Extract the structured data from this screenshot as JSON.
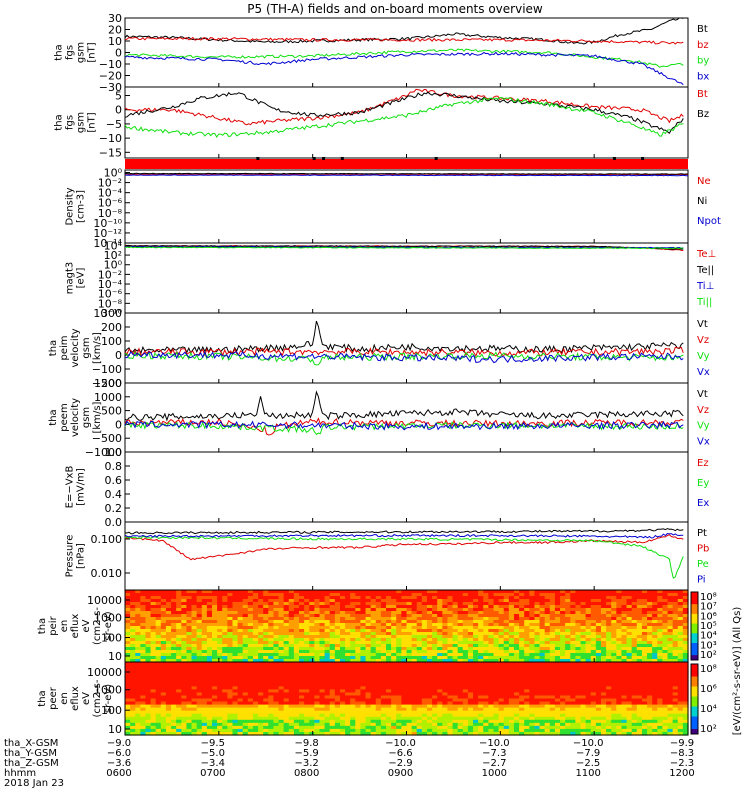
{
  "title": "P5 (TH-A) fields and on-board moments overview",
  "colors": {
    "black": "#000000",
    "red": "#e00000",
    "green": "#10e010",
    "blue": "#0000d0"
  },
  "chart_data": [
    {
      "id": "fgs-gsm",
      "type": "line",
      "ylabel": [
        "tha",
        "fgs",
        "gsm",
        "[nT]"
      ],
      "ylim": [
        -30,
        30
      ],
      "yticks": [
        "30",
        "20",
        "10",
        "0",
        "−10",
        "−20",
        "−30"
      ],
      "ytick_values": [
        30,
        20,
        10,
        0,
        -10,
        -20,
        -30
      ],
      "legend": [
        {
          "name": "Bt",
          "color": "black"
        },
        {
          "name": "bz",
          "color": "red"
        },
        {
          "name": "by",
          "color": "green"
        },
        {
          "name": "bx",
          "color": "blue"
        }
      ],
      "series": [
        {
          "name": "Bt",
          "color": "black",
          "x": [
            6.0,
            6.5,
            7.0,
            7.5,
            8.0,
            8.5,
            9.0,
            9.3,
            9.5,
            10.0,
            10.5,
            10.8,
            11.0,
            11.3,
            11.6,
            11.8,
            11.95
          ],
          "y": [
            14,
            13,
            11,
            9,
            10,
            11,
            12,
            14,
            16,
            13,
            11,
            8,
            9,
            16,
            20,
            27,
            30
          ]
        },
        {
          "name": "bz",
          "color": "red",
          "x": [
            6.0,
            7.0,
            8.0,
            9.0,
            10.0,
            11.0,
            11.95
          ],
          "y": [
            12,
            12,
            11,
            11,
            11,
            10,
            8
          ]
        },
        {
          "name": "by",
          "color": "green",
          "x": [
            6.0,
            7.0,
            8.0,
            8.5,
            9.0,
            9.5,
            10.0,
            10.5,
            11.0,
            11.4,
            11.7,
            11.95
          ],
          "y": [
            -2,
            -4,
            -3,
            -1,
            1,
            2,
            1,
            0,
            -4,
            -7,
            -12,
            -10
          ]
        },
        {
          "name": "bx",
          "color": "blue",
          "x": [
            6.0,
            7.0,
            7.5,
            8.0,
            9.0,
            10.0,
            11.0,
            11.5,
            11.8,
            11.95
          ],
          "y": [
            -4,
            -6,
            -10,
            -6,
            -2,
            -1,
            -3,
            -10,
            -22,
            -28
          ]
        }
      ]
    },
    {
      "id": "fgs-gsm-zoom",
      "type": "line",
      "ylabel": [
        "tha",
        "fgs",
        "gsm",
        "[nT]"
      ],
      "ylim": [
        -17,
        8
      ],
      "yticks": [
        "5",
        "0",
        "−5",
        "−10",
        "−15"
      ],
      "ytick_values": [
        5,
        0,
        -5,
        -10,
        -15
      ],
      "legend": [
        {
          "name": "Bt",
          "color": "red"
        },
        {
          "name": "Bz",
          "color": "black"
        }
      ],
      "series": [
        {
          "name": "Bt",
          "color": "red",
          "x": [
            6.0,
            6.5,
            7.0,
            7.3,
            7.6,
            8.0,
            8.5,
            9.0,
            9.1,
            9.5,
            10.0,
            10.5,
            11.0,
            11.5,
            11.8,
            11.95
          ],
          "y": [
            0,
            0,
            -3,
            -5,
            -4,
            -3,
            -1,
            5,
            7,
            5,
            4,
            3,
            1,
            0,
            -4,
            -2
          ]
        },
        {
          "name": "Bz",
          "color": "black",
          "x": [
            6.0,
            6.5,
            6.8,
            7.2,
            7.6,
            8.0,
            8.5,
            9.0,
            9.2,
            9.5,
            10.0,
            10.5,
            11.0,
            11.4,
            11.8,
            11.95
          ],
          "y": [
            -2,
            1,
            4,
            6,
            0,
            -2,
            -1,
            4,
            6,
            5,
            3,
            2,
            0,
            -3,
            -8,
            -3
          ]
        },
        {
          "name": "by",
          "color": "green",
          "x": [
            6.0,
            6.5,
            7.0,
            7.5,
            8.0,
            8.5,
            9.0,
            9.5,
            10.0,
            10.5,
            11.0,
            11.4,
            11.7,
            11.95
          ],
          "y": [
            -6,
            -8,
            -9,
            -8,
            -6,
            -4,
            -2,
            2,
            4,
            2,
            -1,
            -5,
            -9,
            -5
          ]
        }
      ]
    },
    {
      "id": "density",
      "type": "line",
      "ylabel": [
        "Density",
        "[cm-3]"
      ],
      "yscale": "log",
      "ylim": [
        -14,
        0.5
      ],
      "yticks": [
        "10⁰",
        "10⁻²",
        "10⁻⁴",
        "10⁻⁶",
        "10⁻⁸",
        "10⁻¹⁰",
        "10⁻¹²",
        "10⁻¹⁴"
      ],
      "ytick_values": [
        0,
        -2,
        -4,
        -6,
        -8,
        -10,
        -12,
        -14
      ],
      "legend": [
        {
          "name": "Ne",
          "color": "red"
        },
        {
          "name": "Ni",
          "color": "black"
        },
        {
          "name": "Npot",
          "color": "blue"
        }
      ],
      "series": [
        {
          "name": "Ne",
          "color": "red",
          "x": [
            6.0,
            12.0
          ],
          "y": [
            -0.3,
            -0.4
          ]
        },
        {
          "name": "Ni",
          "color": "black",
          "x": [
            6.0,
            12.0
          ],
          "y": [
            -0.2,
            -0.3
          ]
        },
        {
          "name": "Npot",
          "color": "blue",
          "x": [
            6.0,
            12.0
          ],
          "y": [
            -0.5,
            -0.6
          ]
        }
      ]
    },
    {
      "id": "magt3",
      "type": "line",
      "ylabel": [
        "magt3",
        "[eV]"
      ],
      "yscale": "log",
      "ylim": [
        -10,
        4.5
      ],
      "yticks": [
        "10⁴",
        "10²",
        "10⁰",
        "10⁻²",
        "10⁻⁴",
        "10⁻⁶",
        "10⁻⁸",
        "10⁻¹⁰"
      ],
      "ytick_values": [
        4,
        2,
        0,
        -2,
        -4,
        -6,
        -8,
        -10
      ],
      "legend": [
        {
          "name": "Te⊥",
          "color": "red"
        },
        {
          "name": "Te||",
          "color": "black"
        },
        {
          "name": "Ti⊥",
          "color": "blue"
        },
        {
          "name": "Ti||",
          "color": "green"
        }
      ],
      "series": [
        {
          "name": "Te⊥",
          "color": "red",
          "x": [
            6.0,
            11.0,
            11.5,
            11.95
          ],
          "y": [
            3.9,
            3.8,
            3.5,
            3.0
          ]
        },
        {
          "name": "Te||",
          "color": "black",
          "x": [
            6.0,
            11.0,
            11.95
          ],
          "y": [
            3.9,
            3.8,
            3.2
          ]
        },
        {
          "name": "Ti⊥",
          "color": "blue",
          "x": [
            6.0,
            11.95
          ],
          "y": [
            3.7,
            3.5
          ]
        },
        {
          "name": "Ti||",
          "color": "green",
          "x": [
            6.0,
            11.95
          ],
          "y": [
            3.6,
            3.4
          ]
        }
      ]
    },
    {
      "id": "peim-velocity",
      "type": "line",
      "ylabel": [
        "tha",
        "peim",
        "velocity",
        "gsm",
        "[km/s]"
      ],
      "ylim": [
        -200,
        300
      ],
      "yticks": [
        "300",
        "200",
        "100",
        "0",
        "−100",
        "−200"
      ],
      "ytick_values": [
        300,
        200,
        100,
        0,
        -100,
        -200
      ],
      "legend": [
        {
          "name": "Vt",
          "color": "black"
        },
        {
          "name": "Vz",
          "color": "red"
        },
        {
          "name": "Vy",
          "color": "green"
        },
        {
          "name": "Vx",
          "color": "blue"
        }
      ],
      "series": [
        {
          "name": "Vt",
          "color": "black",
          "x": [
            6.0,
            7.0,
            7.5,
            7.8,
            8.0,
            8.05,
            8.1,
            8.5,
            9.0,
            9.5,
            10.0,
            10.5,
            11.0,
            11.5,
            11.95
          ],
          "y": [
            30,
            35,
            50,
            60,
            80,
            260,
            70,
            40,
            60,
            50,
            45,
            40,
            50,
            60,
            70
          ]
        },
        {
          "name": "Vz",
          "color": "red",
          "x": [
            6.0,
            8.0,
            9.0,
            10.0,
            11.0,
            11.95
          ],
          "y": [
            20,
            25,
            20,
            15,
            20,
            30
          ]
        },
        {
          "name": "Vy",
          "color": "green",
          "x": [
            6.0,
            7.0,
            8.0,
            8.05,
            8.1,
            9.0,
            10.0,
            11.0,
            11.95
          ],
          "y": [
            0,
            -10,
            -30,
            -80,
            -20,
            -10,
            -5,
            -15,
            -20
          ]
        },
        {
          "name": "Vx",
          "color": "blue",
          "x": [
            6.0,
            7.0,
            8.0,
            9.0,
            10.0,
            11.0,
            11.95
          ],
          "y": [
            5,
            0,
            -10,
            -20,
            -30,
            -15,
            -10
          ]
        }
      ]
    },
    {
      "id": "peem-velocity",
      "type": "line",
      "ylabel": [
        "tha",
        "peem",
        "velocity",
        "gsm",
        "[km/s]"
      ],
      "ylim": [
        -1000,
        1500
      ],
      "yticks": [
        "1500",
        "1000",
        "500",
        "0",
        "−500",
        "−1000"
      ],
      "ytick_values": [
        1500,
        1000,
        500,
        0,
        -500,
        -1000
      ],
      "legend": [
        {
          "name": "Vt",
          "color": "black"
        },
        {
          "name": "Vz",
          "color": "red"
        },
        {
          "name": "Vy",
          "color": "green"
        },
        {
          "name": "Vx",
          "color": "blue"
        }
      ],
      "series": [
        {
          "name": "Vt",
          "color": "black",
          "x": [
            6.0,
            7.0,
            7.4,
            7.45,
            7.5,
            8.0,
            8.05,
            8.1,
            9.0,
            9.5,
            10.0,
            10.5,
            11.0,
            11.95
          ],
          "y": [
            250,
            300,
            350,
            1000,
            300,
            350,
            1300,
            300,
            400,
            450,
            350,
            300,
            350,
            400
          ]
        },
        {
          "name": "Vz",
          "color": "red",
          "x": [
            6.0,
            7.0,
            7.5,
            7.55,
            7.6,
            8.0,
            9.0,
            10.0,
            11.0,
            11.95
          ],
          "y": [
            50,
            80,
            -200,
            -500,
            -100,
            100,
            50,
            30,
            60,
            80
          ]
        },
        {
          "name": "Vy",
          "color": "green",
          "x": [
            6.0,
            7.0,
            8.0,
            8.05,
            8.1,
            9.0,
            10.0,
            11.0,
            11.95
          ],
          "y": [
            -20,
            -50,
            -200,
            -500,
            -100,
            -50,
            -30,
            -60,
            -80
          ]
        },
        {
          "name": "Vx",
          "color": "blue",
          "x": [
            6.0,
            8.0,
            9.0,
            10.0,
            11.0,
            11.95
          ],
          "y": [
            0,
            -30,
            -80,
            -60,
            -40,
            -20
          ]
        }
      ]
    },
    {
      "id": "efield",
      "type": "line",
      "ylabel": [
        "E=−VxB",
        "[mV/m]"
      ],
      "ylim": [
        0,
        1.0
      ],
      "yticks": [
        "1.0",
        "0.8",
        "0.6",
        "0.4",
        "0.2",
        "0.0"
      ],
      "ytick_values": [
        1.0,
        0.8,
        0.6,
        0.4,
        0.2,
        0.0
      ],
      "legend": [
        {
          "name": "Ez",
          "color": "red"
        },
        {
          "name": "Ey",
          "color": "green"
        },
        {
          "name": "Ex",
          "color": "blue"
        }
      ],
      "series": []
    },
    {
      "id": "pressure",
      "type": "line",
      "ylabel": [
        "Pressure",
        "[nPa]"
      ],
      "yscale": "log",
      "ylim": [
        -2.5,
        -0.5
      ],
      "yticks": [
        "0.100",
        "0.010"
      ],
      "ytick_values": [
        -1,
        -2
      ],
      "legend": [
        {
          "name": "Pt",
          "color": "black"
        },
        {
          "name": "Pb",
          "color": "red"
        },
        {
          "name": "Pe",
          "color": "green"
        },
        {
          "name": "Pi",
          "color": "blue"
        }
      ],
      "series": [
        {
          "name": "Pt",
          "color": "black",
          "x": [
            6.0,
            8.0,
            10.0,
            11.0,
            11.5,
            11.8,
            11.95
          ],
          "y": [
            -0.82,
            -0.8,
            -0.78,
            -0.77,
            -0.75,
            -0.72,
            -0.75
          ]
        },
        {
          "name": "Pb",
          "color": "red",
          "x": [
            6.0,
            6.4,
            6.7,
            7.0,
            7.5,
            8.0,
            8.5,
            9.0,
            9.5,
            10.0,
            10.5,
            11.0,
            11.5,
            11.8,
            11.95
          ],
          "y": [
            -0.95,
            -1.05,
            -1.6,
            -1.5,
            -1.3,
            -1.25,
            -1.25,
            -1.15,
            -1.15,
            -1.1,
            -1.1,
            -1.05,
            -1.1,
            -0.9,
            -1.0
          ]
        },
        {
          "name": "Pe",
          "color": "green",
          "x": [
            6.0,
            7.0,
            8.0,
            9.0,
            10.0,
            11.0,
            11.5,
            11.8,
            11.85,
            11.95
          ],
          "y": [
            -0.95,
            -0.97,
            -1.0,
            -1.0,
            -1.02,
            -1.05,
            -1.2,
            -1.6,
            -2.2,
            -1.5
          ]
        },
        {
          "name": "Pi",
          "color": "blue",
          "x": [
            6.0,
            8.0,
            10.0,
            11.0,
            11.6,
            11.8,
            11.95
          ],
          "y": [
            -0.92,
            -0.9,
            -0.9,
            -0.92,
            -0.95,
            -0.85,
            -0.88
          ]
        }
      ]
    },
    {
      "id": "peir-spectrogram",
      "type": "heatmap",
      "ylabel": [
        "tha",
        "peir",
        "en",
        "eflux",
        "eV",
        "(cm2-s-",
        "sr-eV)"
      ],
      "yscale": "log",
      "yticks": [
        "10000",
        "1000",
        "100",
        "10"
      ]
    },
    {
      "id": "peer-spectrogram",
      "type": "heatmap",
      "ylabel": [
        "tha",
        "peer",
        "en",
        "eflux",
        "eV",
        "(cm2-s-",
        "sr-eV)"
      ],
      "yscale": "log",
      "yticks": [
        "10000",
        "1000",
        "100",
        "10"
      ]
    }
  ],
  "colorbar1": {
    "ticks": [
      "10⁸",
      "10⁷",
      "10⁶",
      "10⁵",
      "10⁴",
      "10³",
      "10²"
    ],
    "label": "[eV/(cm²-s-sr-eV)] (All Qs)"
  },
  "colorbar2": {
    "ticks": [
      "10⁸",
      "10⁶",
      "10⁴",
      "10²"
    ]
  },
  "xaxis": {
    "range": [
      6,
      12
    ],
    "tick_values": [
      6,
      7,
      8,
      9,
      10,
      11,
      12
    ],
    "row_labels": [
      "tha_X-GSM",
      "tha_Y-GSM",
      "tha_Z-GSM",
      "hhmm",
      "2018 Jan 23"
    ],
    "rows": [
      [
        "−9.0",
        "−9.5",
        "−9.8",
        "−10.0",
        "−10.0",
        "−10.0",
        "−9.9"
      ],
      [
        "−6.0",
        "−5.0",
        "−5.9",
        "−6.6",
        "−7.3",
        "−7.9",
        "−8.3"
      ],
      [
        "−3.6",
        "−3.4",
        "−3.2",
        "−2.9",
        "−2.7",
        "−2.5",
        "−2.3"
      ],
      [
        "0600",
        "0700",
        "0800",
        "0900",
        "1000",
        "1100",
        "1200"
      ]
    ]
  }
}
